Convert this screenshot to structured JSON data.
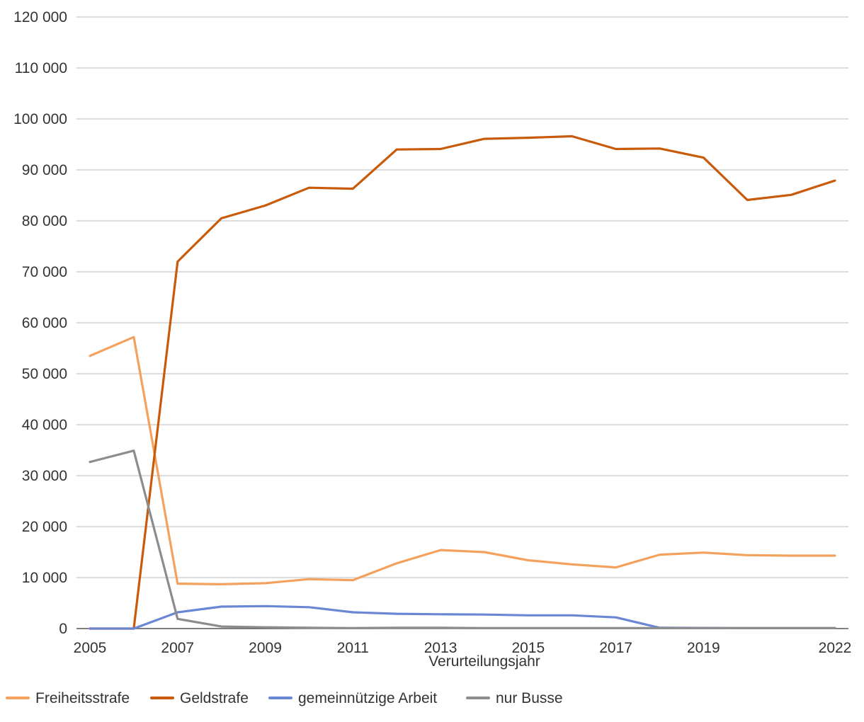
{
  "chart_data": {
    "type": "line",
    "title": "",
    "xlabel": "Verurteilungsjahr",
    "ylabel": "",
    "x": [
      2005,
      2006,
      2007,
      2008,
      2009,
      2010,
      2011,
      2012,
      2013,
      2014,
      2015,
      2016,
      2017,
      2018,
      2019,
      2020,
      2021,
      2022
    ],
    "xticks": [
      "2005",
      "2007",
      "2009",
      "2011",
      "2013",
      "2015",
      "2017",
      "2019",
      "2022"
    ],
    "ylim": [
      0,
      120000
    ],
    "yticks": [
      0,
      10000,
      20000,
      30000,
      40000,
      50000,
      60000,
      70000,
      80000,
      90000,
      100000,
      110000,
      120000
    ],
    "ytick_labels": [
      "0",
      "10 000",
      "20 000",
      "30 000",
      "40 000",
      "50 000",
      "60 000",
      "70 000",
      "80 000",
      "90 000",
      "100 000",
      "110 000",
      "120 000"
    ],
    "grid": "horizontal",
    "legend_position": "bottom-left",
    "series": [
      {
        "name": "Freiheitsstrafe",
        "color": "#F4A15D",
        "values": [
          53500,
          57200,
          8800,
          8700,
          8900,
          9700,
          9500,
          12800,
          15400,
          15000,
          13400,
          12600,
          12000,
          14500,
          14900,
          14400,
          14300,
          14300
        ]
      },
      {
        "name": "Geldstrafe",
        "color": "#C85A0A",
        "values": [
          0,
          0,
          72000,
          80500,
          83000,
          86500,
          86300,
          94000,
          94100,
          96100,
          96300,
          96600,
          94100,
          94200,
          92400,
          84100,
          85100,
          87900
        ]
      },
      {
        "name": "gemeinnützige Arbeit",
        "color": "#6A87D6",
        "values": [
          0,
          0,
          3200,
          4300,
          4400,
          4200,
          3200,
          2900,
          2800,
          2750,
          2600,
          2600,
          2200,
          150,
          120,
          100,
          100,
          100
        ]
      },
      {
        "name": "nur Busse",
        "color": "#8C8C8C",
        "values": [
          32700,
          34900,
          1900,
          400,
          250,
          150,
          100,
          150,
          150,
          100,
          100,
          100,
          100,
          100,
          100,
          100,
          100,
          100
        ]
      }
    ]
  }
}
